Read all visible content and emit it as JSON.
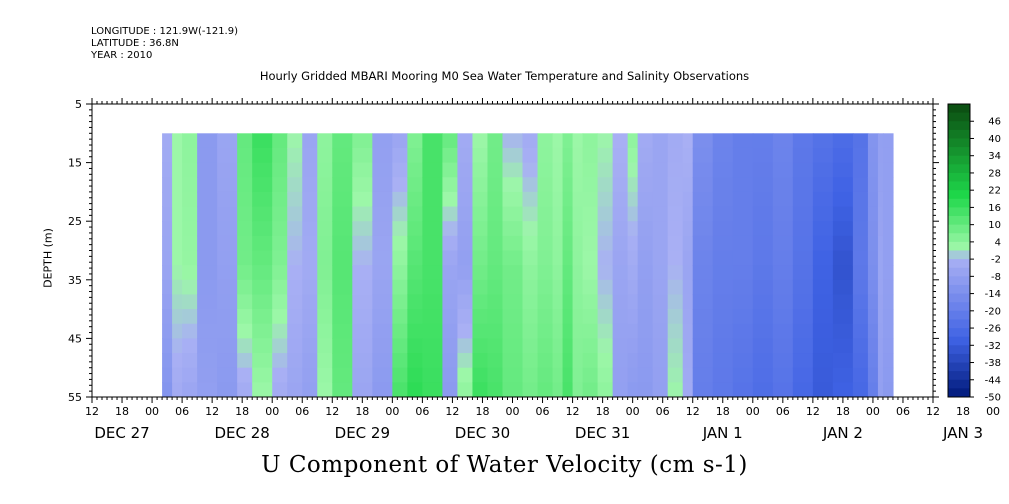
{
  "header": {
    "longitude": "LONGITUDE : 121.9W(-121.9)",
    "latitude": "LATITUDE : 36.8N",
    "year": "YEAR : 2010"
  },
  "chart_data": {
    "type": "heatmap",
    "title": "Hourly Gridded MBARI Mooring M0 Sea Water Temperature and Salinity Observations",
    "xlabel": "U Component of Water Velocity (cm s-1)",
    "ylabel": "DEPTH (m)",
    "x_hour_ticks": [
      "12",
      "18",
      "00",
      "06",
      "12",
      "18",
      "00",
      "06",
      "12",
      "18",
      "00",
      "06",
      "12",
      "18",
      "00",
      "06",
      "12",
      "18",
      "00",
      "06",
      "12",
      "18",
      "00",
      "06",
      "12",
      "18",
      "00",
      "06",
      "12",
      "18",
      "00",
      "06"
    ],
    "x_day_labels": [
      "DEC 27",
      "DEC 28",
      "DEC 29",
      "DEC 30",
      "DEC 31",
      "JAN  1",
      "JAN  2",
      "JAN  3"
    ],
    "x_range_hours": [
      0,
      168
    ],
    "y_ticks": [
      5,
      15,
      25,
      35,
      45,
      55
    ],
    "ylim": [
      5,
      55
    ],
    "y_reversed": true,
    "data_depth_range": [
      10,
      55
    ],
    "colorbar_labels": [
      "46",
      "40",
      "34",
      "28",
      "22",
      "16",
      "10",
      "4",
      "-2",
      "-8",
      "-14",
      "-20",
      "-26",
      "-32",
      "-38",
      "-44",
      "-50"
    ],
    "colorbar_range": [
      -50,
      52
    ],
    "colorbar_step": 3,
    "colors": {
      "strong_positive": "#0b4a10",
      "positive": "#1ed84a",
      "weak_positive": "#9cf7a8",
      "weak_negative": "#a9b0f4",
      "negative": "#3f62e4",
      "strong_negative": "#001a7a"
    },
    "columns": [
      {
        "start": 14,
        "u": [
          -4,
          -6,
          -12
        ]
      },
      {
        "start": 16,
        "u": [
          2,
          2,
          -4
        ]
      },
      {
        "start": 18,
        "u": [
          4,
          3,
          -6
        ]
      },
      {
        "start": 21,
        "u": [
          -10,
          -10,
          -8
        ]
      },
      {
        "start": 25,
        "u": [
          -6,
          -8,
          -10
        ]
      },
      {
        "start": 29,
        "u": [
          10,
          8,
          -4
        ]
      },
      {
        "start": 32,
        "u": [
          16,
          10,
          2
        ]
      },
      {
        "start": 36,
        "u": [
          10,
          6,
          -4
        ]
      },
      {
        "start": 39,
        "u": [
          2,
          -2,
          -6
        ]
      },
      {
        "start": 42,
        "u": [
          -6,
          -4,
          -8
        ]
      },
      {
        "start": 45,
        "u": [
          4,
          6,
          2
        ]
      },
      {
        "start": 48,
        "u": [
          10,
          12,
          10
        ]
      },
      {
        "start": 52,
        "u": [
          6,
          -2,
          -6
        ]
      },
      {
        "start": 56,
        "u": [
          -8,
          -6,
          -10
        ]
      },
      {
        "start": 60,
        "u": [
          -6,
          4,
          14
        ]
      },
      {
        "start": 63,
        "u": [
          6,
          12,
          18
        ]
      },
      {
        "start": 66,
        "u": [
          14,
          14,
          16
        ]
      },
      {
        "start": 70,
        "u": [
          10,
          -6,
          -10
        ]
      },
      {
        "start": 73,
        "u": [
          -4,
          -8,
          4
        ]
      },
      {
        "start": 76,
        "u": [
          2,
          8,
          16
        ]
      },
      {
        "start": 79,
        "u": [
          8,
          10,
          14
        ]
      },
      {
        "start": 82,
        "u": [
          -2,
          8,
          10
        ]
      },
      {
        "start": 86,
        "u": [
          -4,
          4,
          8
        ]
      },
      {
        "start": 89,
        "u": [
          4,
          6,
          10
        ]
      },
      {
        "start": 92,
        "u": [
          2,
          4,
          8
        ]
      },
      {
        "start": 94,
        "u": [
          6,
          10,
          14
        ]
      },
      {
        "start": 96,
        "u": [
          2,
          4,
          6
        ]
      },
      {
        "start": 98,
        "u": [
          4,
          2,
          8
        ]
      },
      {
        "start": 101,
        "u": [
          2,
          -2,
          4
        ]
      },
      {
        "start": 104,
        "u": [
          -2,
          -6,
          -8
        ]
      },
      {
        "start": 107,
        "u": [
          4,
          -4,
          -10
        ]
      },
      {
        "start": 109,
        "u": [
          -4,
          -8,
          -10
        ]
      },
      {
        "start": 112,
        "u": [
          -6,
          -6,
          -8
        ]
      },
      {
        "start": 115,
        "u": [
          -4,
          -2,
          2
        ]
      },
      {
        "start": 118,
        "u": [
          -2,
          -6,
          -4
        ]
      },
      {
        "start": 120,
        "u": [
          -14,
          -18,
          -20
        ]
      },
      {
        "start": 124,
        "u": [
          -18,
          -20,
          -22
        ]
      },
      {
        "start": 128,
        "u": [
          -20,
          -20,
          -24
        ]
      },
      {
        "start": 132,
        "u": [
          -20,
          -22,
          -26
        ]
      },
      {
        "start": 136,
        "u": [
          -18,
          -20,
          -24
        ]
      },
      {
        "start": 140,
        "u": [
          -22,
          -24,
          -28
        ]
      },
      {
        "start": 144,
        "u": [
          -24,
          -30,
          -32
        ]
      },
      {
        "start": 148,
        "u": [
          -26,
          -34,
          -30
        ]
      },
      {
        "start": 152,
        "u": [
          -24,
          -22,
          -28
        ]
      },
      {
        "start": 155,
        "u": [
          -12,
          -14,
          -20
        ]
      },
      {
        "start": 157,
        "u": [
          -8,
          -6,
          -8
        ]
      },
      {
        "start": 158,
        "u": [
          -8,
          -8,
          -10
        ]
      }
    ],
    "data_end_hours": 160
  }
}
